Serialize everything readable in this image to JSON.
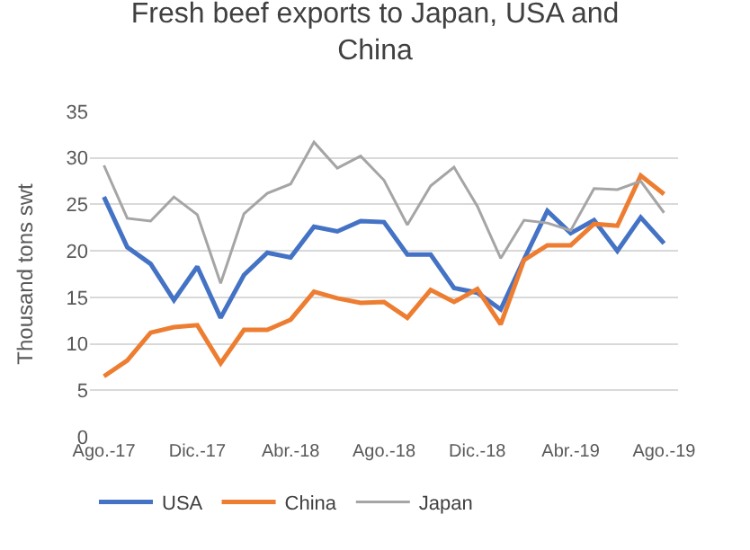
{
  "chart_data": {
    "type": "line",
    "title": "Fresh beef exports to Japan, USA and China",
    "ylabel": "Thousand tons swt",
    "categories": [
      "Ago.-17",
      null,
      null,
      null,
      "Dic.-17",
      null,
      null,
      null,
      "Abr.-18",
      null,
      null,
      null,
      "Ago.-18",
      null,
      null,
      null,
      "Dic.-18",
      null,
      null,
      null,
      "Abr.-19",
      null,
      null,
      null,
      "Ago.-19"
    ],
    "series": [
      {
        "name": "USA",
        "color": "#4472c4",
        "values": [
          25.8,
          20.4,
          18.6,
          14.7,
          18.3,
          12.8,
          17.4,
          19.8,
          19.3,
          22.6,
          22.1,
          23.2,
          23.1,
          19.6,
          19.6,
          16.0,
          15.5,
          13.7,
          19.1,
          24.3,
          21.9,
          23.3,
          20.0,
          23.6,
          20.8
        ]
      },
      {
        "name": "China",
        "color": "#ed7d31",
        "values": [
          6.5,
          8.2,
          11.2,
          11.8,
          12.0,
          7.9,
          11.5,
          11.5,
          12.6,
          15.6,
          14.9,
          14.4,
          14.5,
          12.8,
          15.8,
          14.5,
          15.9,
          12.1,
          19.0,
          20.6,
          20.6,
          22.9,
          22.7,
          28.1,
          26.1
        ]
      },
      {
        "name": "Japan",
        "color": "#a5a5a5",
        "values": [
          29.2,
          23.5,
          23.2,
          25.8,
          23.9,
          16.5,
          24.0,
          26.2,
          27.2,
          31.7,
          28.9,
          30.2,
          27.6,
          22.8,
          27.0,
          29.0,
          24.8,
          19.2,
          23.3,
          23.0,
          22.2,
          26.7,
          26.6,
          27.5,
          24.1
        ]
      }
    ],
    "ylim": [
      0,
      35
    ],
    "yticks": [
      0,
      5,
      10,
      15,
      20,
      25,
      30,
      35
    ],
    "grid": "y",
    "legend": "bottom",
    "marker": "none",
    "line_style": "solid"
  }
}
